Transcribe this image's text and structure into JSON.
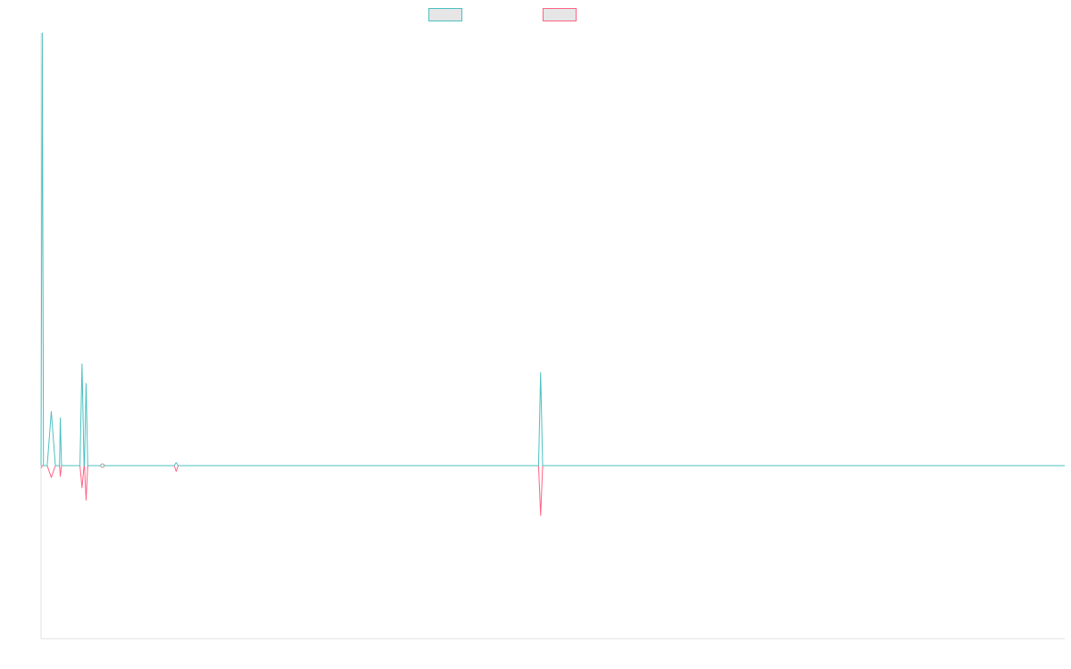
{
  "chart_data": {
    "type": "line",
    "title": "",
    "xlabel": "",
    "ylabel": "",
    "xlim": [
      0,
      250
    ],
    "ylim": [
      -100,
      100
    ],
    "grid": false,
    "legend_position": "top-center",
    "series": [
      {
        "name": "",
        "color": "#4bc0c0",
        "points": [
          [
            0,
            0
          ],
          [
            0.3,
            100
          ],
          [
            0.6,
            0
          ],
          [
            1.5,
            0
          ],
          [
            2.5,
            12.5
          ],
          [
            3.5,
            0
          ],
          [
            4.5,
            0
          ],
          [
            4.7,
            11
          ],
          [
            5,
            0
          ],
          [
            9.5,
            0
          ],
          [
            10,
            23.5
          ],
          [
            10.5,
            0
          ],
          [
            10.6,
            0
          ],
          [
            11,
            19
          ],
          [
            11.4,
            0
          ],
          [
            14.5,
            0
          ],
          [
            15,
            -0.3
          ],
          [
            15.5,
            0
          ],
          [
            32.5,
            0
          ],
          [
            33,
            0.7
          ],
          [
            33.5,
            0
          ],
          [
            121.5,
            0
          ],
          [
            122,
            21.5
          ],
          [
            122.5,
            0
          ],
          [
            250,
            0
          ]
        ]
      },
      {
        "name": "",
        "color": "#ff6384",
        "points": [
          [
            0,
            -1.4
          ],
          [
            0.3,
            0
          ],
          [
            0.6,
            0
          ],
          [
            1.5,
            0
          ],
          [
            2.5,
            -6.8
          ],
          [
            3.5,
            0
          ],
          [
            4.5,
            0
          ],
          [
            4.7,
            -6.2
          ],
          [
            5,
            0
          ],
          [
            9.5,
            0
          ],
          [
            10,
            -12.8
          ],
          [
            10.5,
            0
          ],
          [
            10.6,
            0
          ],
          [
            11,
            -20
          ],
          [
            11.4,
            0
          ],
          [
            14.5,
            0
          ],
          [
            15,
            0.3
          ],
          [
            15.5,
            0
          ],
          [
            32.5,
            0
          ],
          [
            33,
            -3.3
          ],
          [
            33.5,
            0
          ],
          [
            121.5,
            0
          ],
          [
            122,
            -28.8
          ],
          [
            122.5,
            0
          ],
          [
            250,
            0
          ]
        ]
      }
    ]
  }
}
